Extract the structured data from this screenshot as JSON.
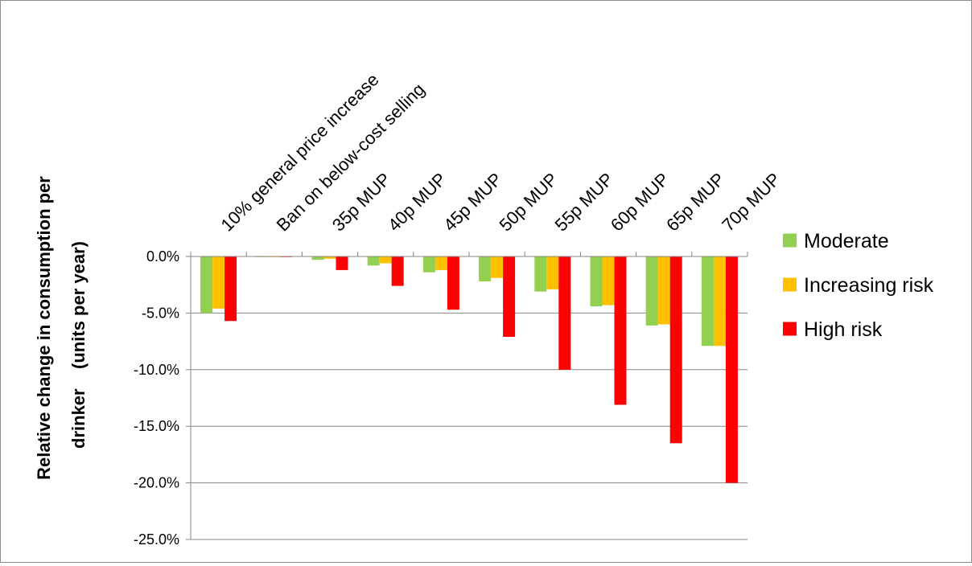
{
  "chart_data": {
    "type": "bar",
    "title": "",
    "xlabel": "",
    "ylabel": "Relative change in consumption per drinker    (units per year)",
    "ylabel_lines": [
      "Relative change in consumption per",
      "drinker    (units per year)"
    ],
    "ylim": [
      -25.0,
      0.0
    ],
    "yticks": [
      0.0,
      -5.0,
      -10.0,
      -15.0,
      -20.0,
      -25.0
    ],
    "ytick_labels": [
      "0.0%",
      "-5.0%",
      "-10.0%",
      "-15.0%",
      "-20.0%",
      "-25.0%"
    ],
    "grid": true,
    "legend_position": "right",
    "categories": [
      "10% general price increase",
      "Ban on below-cost selling",
      "35p MUP",
      "40p MUP",
      "45p MUP",
      "50p MUP",
      "55p MUP",
      "60p MUP",
      "65p MUP",
      "70p MUP"
    ],
    "series": [
      {
        "name": "Moderate",
        "color": "#92d050",
        "values": [
          -5.0,
          0.0,
          -0.3,
          -0.8,
          -1.4,
          -2.2,
          -3.1,
          -4.4,
          -6.1,
          -7.9
        ]
      },
      {
        "name": "Increasing risk",
        "color": "#ffc000",
        "values": [
          -4.6,
          0.0,
          -0.2,
          -0.6,
          -1.2,
          -1.9,
          -2.9,
          -4.3,
          -6.0,
          -7.9
        ]
      },
      {
        "name": "High risk",
        "color": "#ff0000",
        "values": [
          -5.7,
          -0.05,
          -1.2,
          -2.6,
          -4.7,
          -7.1,
          -10.0,
          -13.1,
          -16.5,
          -20.0
        ]
      }
    ]
  }
}
